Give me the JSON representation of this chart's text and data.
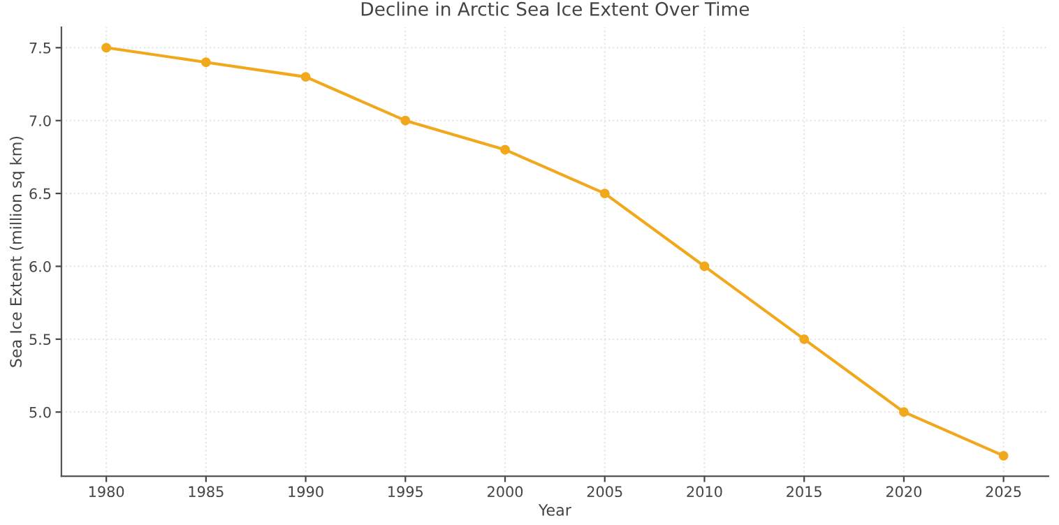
{
  "chart_data": {
    "type": "line",
    "title": "Decline in Arctic Sea Ice Extent Over Time",
    "xlabel": "Year",
    "ylabel": "Sea Ice Extent (million sq km)",
    "x": [
      1980,
      1985,
      1990,
      1995,
      2000,
      2005,
      2010,
      2015,
      2020,
      2025
    ],
    "series": [
      {
        "color": "#f2a81d",
        "values": [
          7.5,
          7.4,
          7.3,
          7.0,
          6.8,
          6.5,
          6.0,
          5.5,
          5.0,
          4.7
        ]
      }
    ],
    "xlim": [
      1977.75,
      2027.25
    ],
    "xticks": [
      1980,
      1985,
      1990,
      1995,
      2000,
      2005,
      2010,
      2015,
      2020,
      2025
    ],
    "ylim": [
      4.56,
      7.64
    ],
    "yticks": [
      {
        "value": 5.0,
        "label": "5.0"
      },
      {
        "value": 5.5,
        "label": "5.5"
      },
      {
        "value": 6.0,
        "label": "6.0"
      },
      {
        "value": 6.5,
        "label": "6.5"
      },
      {
        "value": 7.0,
        "label": "7.0"
      },
      {
        "value": 7.5,
        "label": "7.5"
      }
    ],
    "grid": true,
    "marker": "circle",
    "line_style": "solid",
    "legend": false
  }
}
